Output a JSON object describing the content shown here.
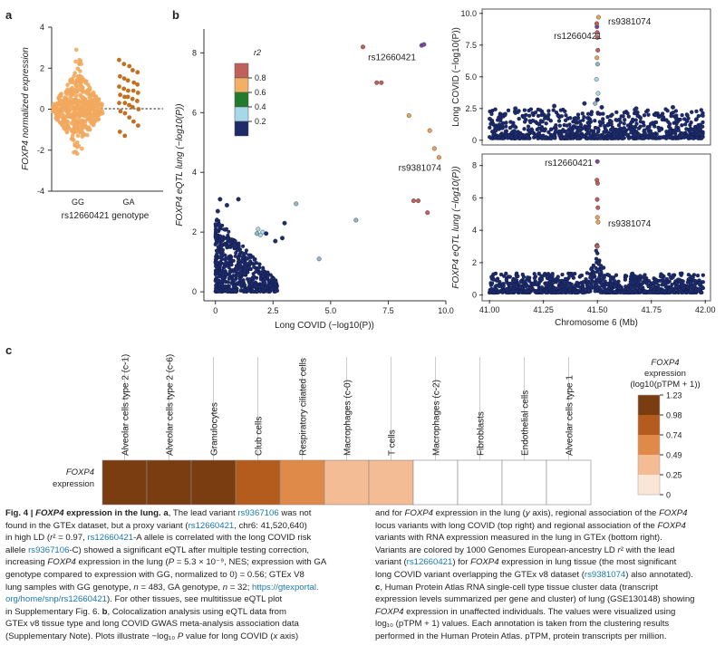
{
  "panels": {
    "a": "a",
    "b": "b",
    "c": "c"
  },
  "chart_data": [
    {
      "id": "panel-a",
      "type": "scatter",
      "subtype": "swarm",
      "categories": [
        "GG",
        "GA"
      ],
      "xlabel": "rs12660421 genotype",
      "ylabel": "FOXP4 normalized expression",
      "ylim": [
        -4,
        4
      ],
      "yticks": [
        -4,
        -2,
        0,
        2,
        4
      ],
      "n": [
        483,
        32
      ],
      "colors": [
        "#f2a85e",
        "#c0701f"
      ],
      "ga_values": [
        2.4,
        2.2,
        2.1,
        1.9,
        1.8,
        1.6,
        1.5,
        1.4,
        1.3,
        1.2,
        1.1,
        1.0,
        0.9,
        0.9,
        0.8,
        0.7,
        0.6,
        0.6,
        0.5,
        0.4,
        0.3,
        0.3,
        0.2,
        0.1,
        0.0,
        -0.1,
        -0.2,
        -0.4,
        -0.6,
        -0.8,
        -1.1,
        -1.3
      ]
    },
    {
      "id": "panel-b-colocalization",
      "type": "scatter",
      "xlabel": "Long COVID (−log10(P))",
      "ylabel": "FOXP4 eQTL lung (−log10(P))",
      "xlim": [
        -0.5,
        10
      ],
      "ylim": [
        -0.3,
        8.8
      ],
      "xticks": [
        0,
        2.5,
        5.0,
        7.5,
        10.0
      ],
      "yticks": [
        0,
        2,
        4,
        6,
        8
      ],
      "annotations": [
        {
          "label": "rs12660421",
          "x": 8.9,
          "y": 8.25
        },
        {
          "label": "rs9381074",
          "x": 9.7,
          "y": 4.5
        }
      ],
      "points": [
        {
          "x": 8.95,
          "y": 8.25,
          "r2": 1.0
        },
        {
          "x": 9.05,
          "y": 8.28,
          "r2": 1.0
        },
        {
          "x": 9.7,
          "y": 4.5,
          "r2": 0.7
        },
        {
          "x": 6.4,
          "y": 8.2,
          "r2": 0.8
        },
        {
          "x": 7.0,
          "y": 7.0,
          "r2": 0.9
        },
        {
          "x": 7.2,
          "y": 7.0,
          "r2": 0.9
        },
        {
          "x": 8.4,
          "y": 5.9,
          "r2": 0.6
        },
        {
          "x": 9.3,
          "y": 5.4,
          "r2": 0.7
        },
        {
          "x": 9.5,
          "y": 4.8,
          "r2": 0.7
        },
        {
          "x": 8.6,
          "y": 3.05,
          "r2": 0.9
        },
        {
          "x": 8.8,
          "y": 3.05,
          "r2": 0.9
        },
        {
          "x": 9.2,
          "y": 2.65,
          "r2": 0.9
        },
        {
          "x": 6.1,
          "y": 2.4,
          "r2": 0.3
        },
        {
          "x": 3.5,
          "y": 2.95,
          "r2": 0.3
        },
        {
          "x": 4.5,
          "y": 1.1,
          "r2": 0.3
        },
        {
          "x": 2.05,
          "y": 2.0,
          "r2": 0.4
        },
        {
          "x": 1.95,
          "y": 1.9,
          "r2": 0.4
        },
        {
          "x": 1.85,
          "y": 2.1,
          "r2": 0.4
        },
        {
          "x": 1.8,
          "y": 1.95,
          "r2": 0.3
        },
        {
          "x": 2.2,
          "y": 1.95,
          "r2": 0.2
        },
        {
          "x": 2.9,
          "y": 1.8,
          "r2": 0.2
        },
        {
          "x": 2.6,
          "y": 1.7,
          "r2": 0.2
        },
        {
          "x": 3.0,
          "y": 2.3,
          "r2": 0.2
        },
        {
          "x": 1.0,
          "y": 3.1,
          "r2": 0.2
        },
        {
          "x": 0.2,
          "y": 3.1,
          "r2": 0.2
        },
        {
          "x": 0.5,
          "y": 2.9,
          "r2": 0.2
        },
        {
          "x": 0.1,
          "y": 2.7,
          "r2": 0.2
        }
      ],
      "background_cluster": {
        "x_range": [
          0,
          2.7
        ],
        "y_range": [
          0,
          2.5
        ],
        "count": 650,
        "r2": 0.1
      },
      "legend": {
        "title": "r2",
        "levels": [
          0.2,
          0.4,
          0.6,
          0.8
        ],
        "colors": [
          "#1d2b6b",
          "#a7d8e8",
          "#227a2c",
          "#f2b066",
          "#c1605a"
        ]
      }
    },
    {
      "id": "panel-b-regional-long-covid",
      "type": "scatter",
      "ylabel": "Long COVID (−log10(P))",
      "xlim": [
        40.97,
        42.02
      ],
      "ylim": [
        -0.3,
        10.2
      ],
      "yticks": [
        0,
        2.5,
        5.0,
        7.5,
        10.0
      ],
      "annotations": [
        {
          "label": "rs9381074",
          "x": 41.52,
          "y": 9.7
        },
        {
          "label": "rs12660421",
          "x": 41.5,
          "y": 8.95
        }
      ],
      "hits": [
        {
          "x": 41.505,
          "y": 9.7,
          "r2": 0.7
        },
        {
          "x": 41.498,
          "y": 8.95,
          "r2": 1.0
        },
        {
          "x": 41.497,
          "y": 9.2,
          "r2": 0.9
        },
        {
          "x": 41.499,
          "y": 8.5,
          "r2": 0.9
        },
        {
          "x": 41.5,
          "y": 8.1,
          "r2": 0.9
        },
        {
          "x": 41.502,
          "y": 7.1,
          "r2": 0.8
        },
        {
          "x": 41.498,
          "y": 6.5,
          "r2": 0.7
        },
        {
          "x": 41.501,
          "y": 6.0,
          "r2": 0.3
        },
        {
          "x": 41.496,
          "y": 4.8,
          "r2": 0.4
        },
        {
          "x": 41.503,
          "y": 3.7,
          "r2": 0.4
        },
        {
          "x": 41.5,
          "y": 3.2,
          "r2": 0.2
        },
        {
          "x": 41.49,
          "y": 2.9,
          "r2": 0.3
        },
        {
          "x": 41.52,
          "y": 2.6,
          "r2": 0.2
        },
        {
          "x": 41.3,
          "y": 2.7,
          "r2": 0.2
        },
        {
          "x": 41.44,
          "y": 2.9,
          "r2": 0.2
        },
        {
          "x": 41.68,
          "y": 2.5,
          "r2": 0.2
        },
        {
          "x": 41.85,
          "y": 2.6,
          "r2": 0.2
        },
        {
          "x": 41.12,
          "y": 2.5,
          "r2": 0.2
        }
      ],
      "background": {
        "count": 850,
        "y_max": 2.3
      }
    },
    {
      "id": "panel-b-regional-eqtl",
      "type": "scatter",
      "xlabel": "Chromosome 6 (Mb)",
      "ylabel": "FOXP4 eQTL lung (−log10(P))",
      "xlim": [
        40.97,
        42.02
      ],
      "ylim": [
        -0.3,
        8.6
      ],
      "xticks": [
        41.0,
        41.25,
        41.5,
        41.75,
        42.0
      ],
      "yticks": [
        0,
        2,
        4,
        6,
        8
      ],
      "annotations": [
        {
          "label": "rs12660421",
          "x": 41.5,
          "y": 8.2
        },
        {
          "label": "rs9381074",
          "x": 41.51,
          "y": 4.5
        }
      ],
      "hits": [
        {
          "x": 41.5,
          "y": 8.25,
          "r2": 1.0
        },
        {
          "x": 41.498,
          "y": 7.1,
          "r2": 0.9
        },
        {
          "x": 41.501,
          "y": 6.9,
          "r2": 0.8
        },
        {
          "x": 41.499,
          "y": 5.9,
          "r2": 0.8
        },
        {
          "x": 41.502,
          "y": 5.4,
          "r2": 0.8
        },
        {
          "x": 41.5,
          "y": 4.8,
          "r2": 0.7
        },
        {
          "x": 41.503,
          "y": 4.5,
          "r2": 0.7
        },
        {
          "x": 41.497,
          "y": 3.05,
          "r2": 0.9
        },
        {
          "x": 41.5,
          "y": 3.0,
          "r2": 0.9
        }
      ],
      "peak": {
        "center": 41.5,
        "height": 2.6
      },
      "background": {
        "count": 1000,
        "y_max": 1.2
      }
    },
    {
      "id": "panel-c-heatmap",
      "type": "heatmap",
      "row_label": "FOXP4 expression",
      "cells": [
        {
          "label": "Alveolar cells type 2 (c-1)",
          "value": 1.23
        },
        {
          "label": "Alveolar cells type 2 (c-6)",
          "value": 1.23
        },
        {
          "label": "Granulocytes",
          "value": 1.23
        },
        {
          "label": "Club cells",
          "value": 0.98
        },
        {
          "label": "Respiratory ciliated cells",
          "value": 0.74
        },
        {
          "label": "Macrophages (c-0)",
          "value": 0.49
        },
        {
          "label": "T cells",
          "value": 0.49
        },
        {
          "label": "Macrophages (c-2)",
          "value": 0
        },
        {
          "label": "Fibroblasts",
          "value": 0
        },
        {
          "label": "Endothelial cells",
          "value": 0
        },
        {
          "label": "Alveolar cells type 1",
          "value": 0
        }
      ],
      "legend": {
        "title": "FOXP4",
        "subtitle1": "expression",
        "subtitle2": "(log10(pTPM + 1))",
        "ticks": [
          1.23,
          0.98,
          0.74,
          0.49,
          0.25,
          0
        ],
        "colors": [
          "#7a3d12",
          "#b35c1e",
          "#e08a49",
          "#f3bc95",
          "#fbe6d6"
        ]
      }
    }
  ],
  "caption": {
    "left": [
      [
        {
          "t": "Fig. 4 | ",
          "b": 1
        },
        {
          "t": "FOXP4",
          "b": 1,
          "i": 1
        },
        {
          "t": " expression in the lung.",
          "b": 1
        },
        {
          "t": " a",
          "b": 1
        },
        {
          "t": ", The lead variant "
        },
        {
          "t": "rs9367106",
          "l": 1
        },
        {
          "t": " was not"
        }
      ],
      [
        {
          "t": "found in the GTEx dataset, but a proxy variant ("
        },
        {
          "t": "rs12660421",
          "l": 1
        },
        {
          "t": ", chr6: 41,520,640)"
        }
      ],
      [
        {
          "t": "in high LD ("
        },
        {
          "t": "r",
          "i": 1
        },
        {
          "t": "² = 0.97, "
        },
        {
          "t": "rs12660421",
          "l": 1
        },
        {
          "t": "-A allele is correlated with the long COVID risk"
        }
      ],
      [
        {
          "t": "allele "
        },
        {
          "t": "rs9367106",
          "l": 1
        },
        {
          "t": "-C) showed a significant eQTL after multiple testing correction,"
        }
      ],
      [
        {
          "t": "increasing "
        },
        {
          "t": "FOXP4",
          "i": 1
        },
        {
          "t": " expression in the lung ("
        },
        {
          "t": "P",
          "i": 1
        },
        {
          "t": " = 5.3 × 10⁻⁹, NES; expression with GA"
        }
      ],
      [
        {
          "t": "genotype compared to expression with GG, normalized to 0) = 0.56; GTEx V8"
        }
      ],
      [
        {
          "t": "lung samples with GG genotype, "
        },
        {
          "t": "n",
          "i": 1
        },
        {
          "t": " = 483, GA genotype, "
        },
        {
          "t": "n",
          "i": 1
        },
        {
          "t": " = 32; "
        },
        {
          "t": "https://gtexportal.",
          "l": 1
        }
      ],
      [
        {
          "t": "org/home/snp/rs12660421",
          "l": 1
        },
        {
          "t": "). For other tissues, see multitissue eQTL plot"
        }
      ],
      [
        {
          "t": "in Supplementary Fig. 6. "
        },
        {
          "t": "b",
          "b": 1
        },
        {
          "t": ", Colocalization analysis using eQTL data from"
        }
      ],
      [
        {
          "t": "GTEx v8 tissue type and long COVID GWAS meta-analysis association data"
        }
      ],
      [
        {
          "t": "(Supplementary Note). Plots illustrate −log₁₀ "
        },
        {
          "t": "P",
          "i": 1
        },
        {
          "t": " value for long COVID ("
        },
        {
          "t": "x",
          "i": 1
        },
        {
          "t": " axis)"
        }
      ]
    ],
    "right": [
      [
        {
          "t": "and for "
        },
        {
          "t": "FOXP4",
          "i": 1
        },
        {
          "t": " expression in the lung ("
        },
        {
          "t": "y",
          "i": 1
        },
        {
          "t": " axis), regional association of the "
        },
        {
          "t": "FOXP4",
          "i": 1
        }
      ],
      [
        {
          "t": "locus variants with long COVID (top right) and regional association of the "
        },
        {
          "t": "FOXP4",
          "i": 1
        }
      ],
      [
        {
          "t": "variants with RNA expression measured in the lung in GTEx (bottom right)."
        }
      ],
      [
        {
          "t": "Variants are colored by 1000 Genomes European-ancestry LD "
        },
        {
          "t": "r",
          "i": 1
        },
        {
          "t": "² with the lead"
        }
      ],
      [
        {
          "t": "variant ("
        },
        {
          "t": "rs12660421",
          "l": 1
        },
        {
          "t": ") for "
        },
        {
          "t": "FOXP4",
          "i": 1
        },
        {
          "t": " expression in lung tissue (the most significant"
        }
      ],
      [
        {
          "t": "long COVID variant overlapping the GTEx v8 dataset ("
        },
        {
          "t": "rs9381074",
          "l": 1
        },
        {
          "t": ") also annotated)."
        }
      ],
      [
        {
          "t": "c",
          "b": 1
        },
        {
          "t": ", Human Protein Atlas RNA single-cell type tissue cluster data (transcript"
        }
      ],
      [
        {
          "t": "expression levels summarized per gene and cluster) of lung (GSE130148) showing"
        }
      ],
      [
        {
          "t": "FOXP4",
          "i": 1
        },
        {
          "t": " expression in unaffected individuals. The values were visualized using"
        }
      ],
      [
        {
          "t": "log₁₀ (pTPM + 1) values. Each annotation is taken from the clustering results"
        }
      ],
      [
        {
          "t": "performed in the Human Protein Atlas. pTPM, protein transcripts per million."
        }
      ]
    ]
  }
}
